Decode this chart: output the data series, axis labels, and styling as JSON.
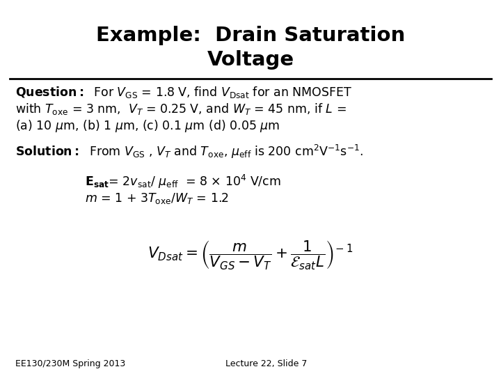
{
  "title_line1": "Example:  Drain Saturation",
  "title_line2": "Voltage",
  "background_color": "#ffffff",
  "text_color": "#000000",
  "footer_left": "EE130/230M Spring 2013",
  "footer_right": "Lecture 22, Slide 7"
}
